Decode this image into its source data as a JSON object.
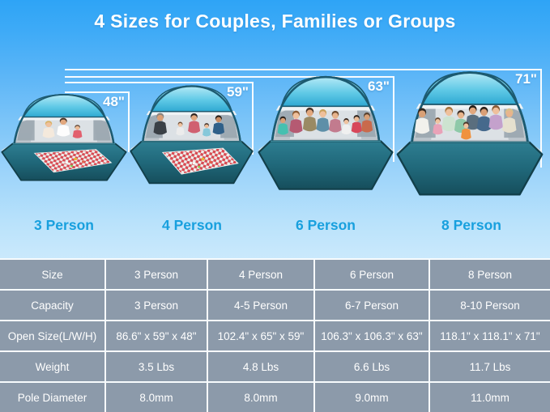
{
  "title": "4 Sizes for Couples, Families or Groups",
  "colors": {
    "accent_blue": "#18A0DE",
    "measure_line": "#FFFFFF",
    "table_bg": "#8C9AAA",
    "table_text": "#FFFFFF",
    "tent_floor_teal": "#20687A",
    "tent_canopy_cyan": "#5FC9E6"
  },
  "tents": [
    {
      "id": "3-person",
      "height_label": "48\"",
      "person_label": "3 Person",
      "people_count": 3,
      "has_picnic_blanket": true
    },
    {
      "id": "4-person",
      "height_label": "59\"",
      "person_label": "4 Person",
      "people_count": 5,
      "has_picnic_blanket": true
    },
    {
      "id": "6-person",
      "height_label": "63\"",
      "person_label": "6 Person",
      "people_count": 8,
      "has_picnic_blanket": false
    },
    {
      "id": "8-person",
      "height_label": "71\"",
      "person_label": "8 Person",
      "people_count": 9,
      "has_picnic_blanket": false
    }
  ],
  "table": {
    "rows": [
      {
        "label": "Size",
        "values": [
          "3 Person",
          "4 Person",
          "6 Person",
          "8 Person"
        ]
      },
      {
        "label": "Capacity",
        "values": [
          "3 Person",
          "4-5 Person",
          "6-7 Person",
          "8-10 Person"
        ]
      },
      {
        "label": "Open Size(L/W/H)",
        "values": [
          "86.6\" x 59\" x 48\"",
          "102.4\" x 65\" x 59\"",
          "106.3\" x 106.3\" x 63\"",
          "118.1\" x 118.1\" x 71\""
        ]
      },
      {
        "label": "Weight",
        "values": [
          "3.5 Lbs",
          "4.8 Lbs",
          "6.6 Lbs",
          "11.7 Lbs"
        ]
      },
      {
        "label": "Pole Diameter",
        "values": [
          "8.0mm",
          "8.0mm",
          "9.0mm",
          "11.0mm"
        ]
      }
    ]
  }
}
